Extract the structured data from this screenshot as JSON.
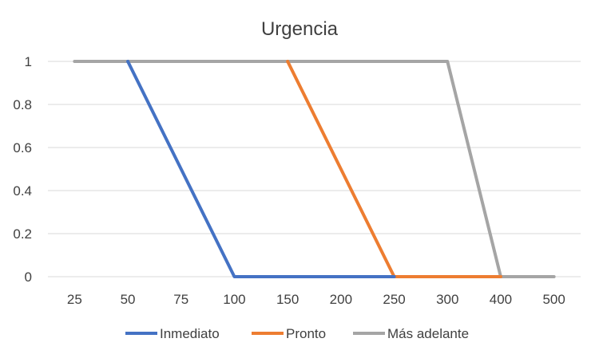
{
  "chart_data": {
    "type": "line",
    "title": "Urgencia",
    "xlabel": "",
    "ylabel": "",
    "categories": [
      "25",
      "50",
      "75",
      "100",
      "150",
      "200",
      "250",
      "300",
      "400",
      "500"
    ],
    "x": [
      25,
      50,
      75,
      100,
      150,
      200,
      250,
      300,
      400,
      500
    ],
    "ylim": [
      0,
      1
    ],
    "y_ticks": [
      "0",
      "0.2",
      "0.4",
      "0.6",
      "0.8",
      "1"
    ],
    "grid": "horizontal",
    "legend_position": "bottom",
    "series": [
      {
        "name": "Inmediato",
        "color": "#4472C4",
        "points": [
          [
            50,
            1
          ],
          [
            100,
            0
          ],
          [
            250,
            0
          ]
        ]
      },
      {
        "name": "Pronto",
        "color": "#ED7D31",
        "points": [
          [
            150,
            1
          ],
          [
            250,
            0
          ],
          [
            400,
            0
          ]
        ]
      },
      {
        "name": "Más adelante",
        "color": "#A5A5A5",
        "points": [
          [
            25,
            1
          ],
          [
            300,
            1
          ],
          [
            400,
            0
          ],
          [
            500,
            0
          ]
        ]
      }
    ]
  }
}
